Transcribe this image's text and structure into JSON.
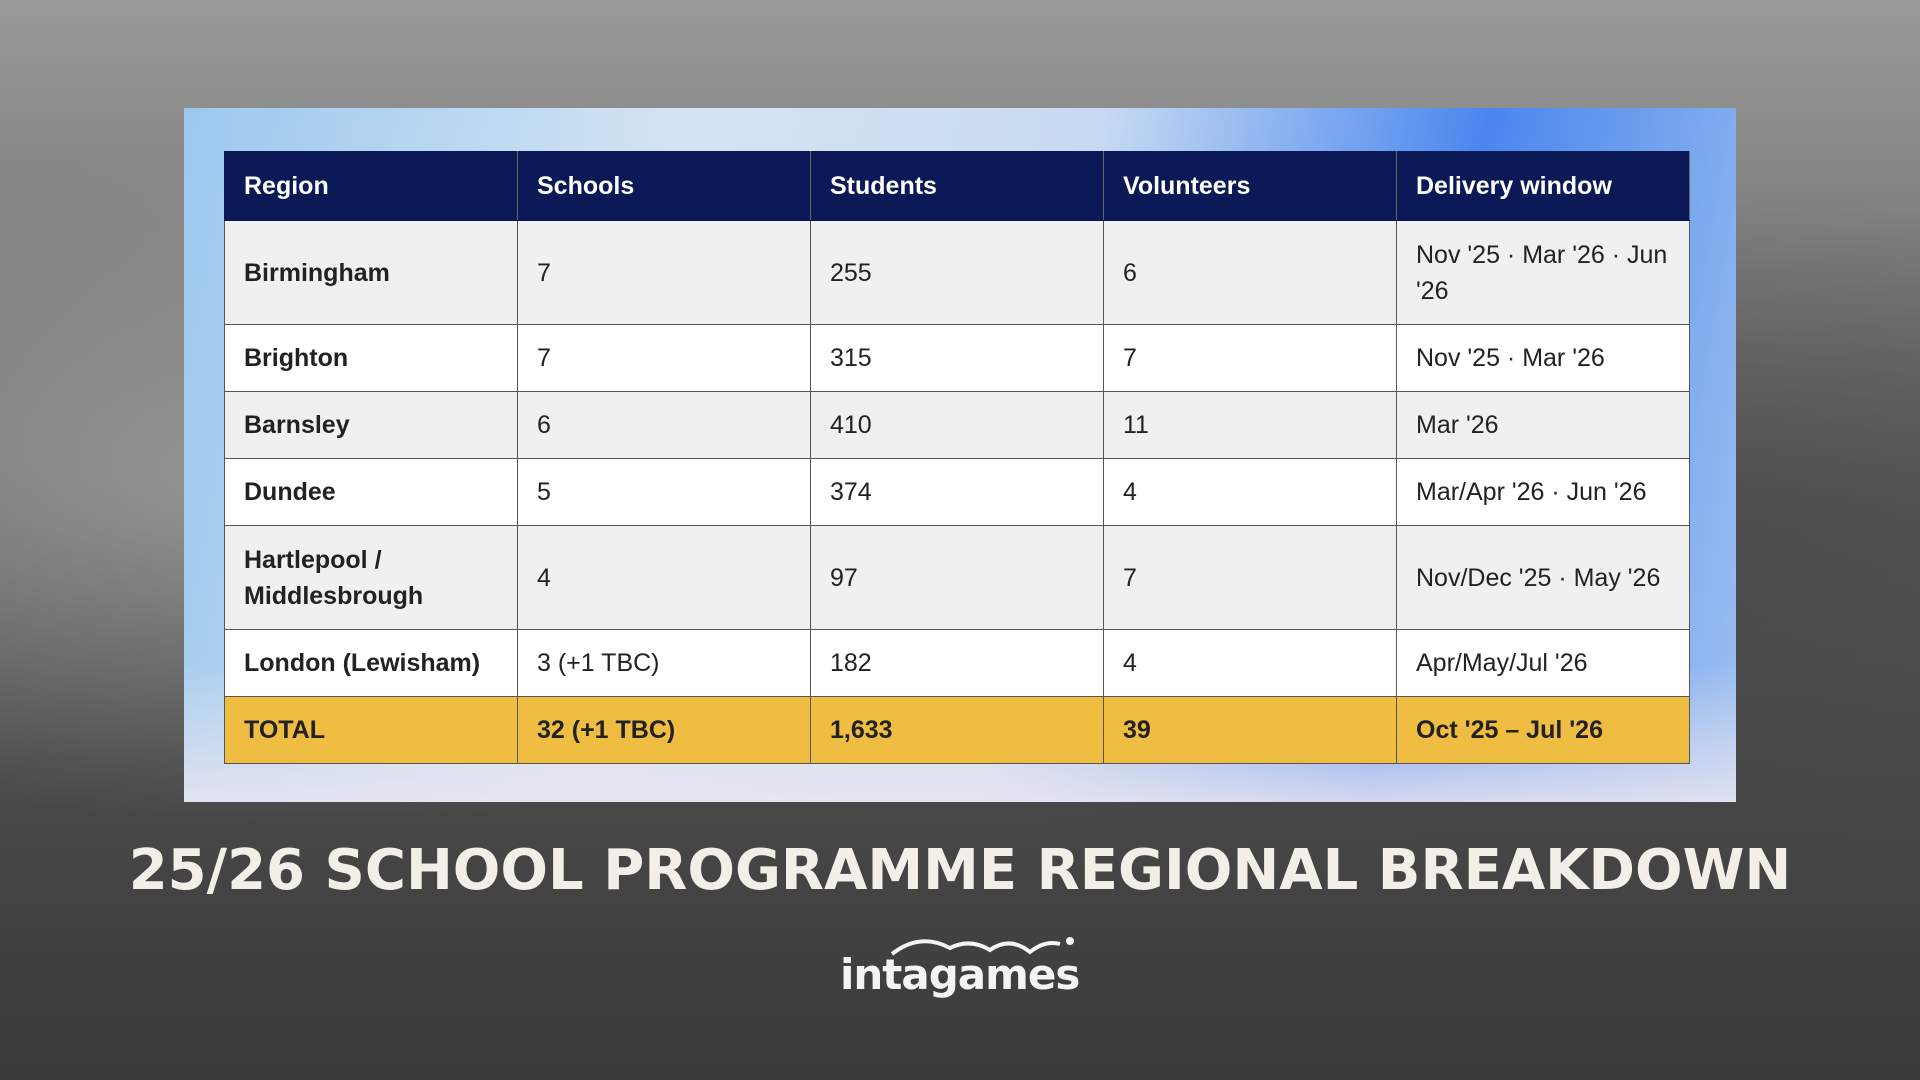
{
  "table": {
    "header": [
      "Region",
      "Schools",
      "Students",
      "Volunteers",
      "Delivery window"
    ],
    "rows": [
      [
        "Birmingham",
        "7",
        "255",
        "6",
        "Nov '25 · Mar '26 · Jun '26"
      ],
      [
        "Brighton",
        "7",
        "315",
        "7",
        "Nov '25 · Mar '26"
      ],
      [
        "Barnsley",
        "6",
        "410",
        "11",
        "Mar '26"
      ],
      [
        "Dundee",
        "5",
        "374",
        "4",
        "Mar/Apr '26 · Jun '26"
      ],
      [
        "Hartlepool / Middlesbrough",
        "4",
        "97",
        "7",
        "Nov/Dec '25 · May '26"
      ],
      [
        "London (Lewisham)",
        "3 (+1 TBC)",
        "182",
        "4",
        "Apr/May/Jul '26"
      ]
    ],
    "total": [
      "TOTAL",
      "32 (+1 TBC)",
      "1,633",
      "39",
      "Oct '25 – Jul '26"
    ]
  },
  "title": "25/26 SCHOOL PROGRAMME REGIONAL BREAKDOWN",
  "logo": "intagames"
}
